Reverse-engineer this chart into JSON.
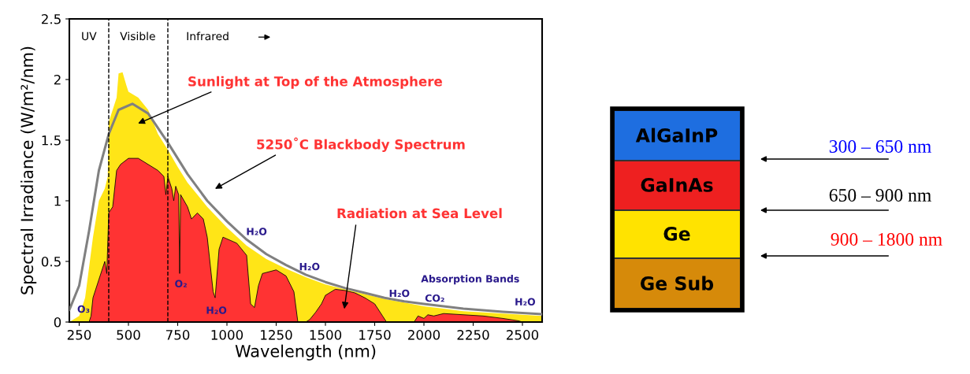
{
  "chart_data": {
    "type": "area",
    "xlabel": "Wavelength (nm)",
    "ylabel": "Spectral Irradiance (W/m²/nm)",
    "xlim": [
      200,
      2600
    ],
    "ylim": [
      0,
      2.5
    ],
    "xticks": [
      250,
      500,
      750,
      1000,
      1250,
      1500,
      1750,
      2000,
      2250,
      2500
    ],
    "yticks": [
      0,
      0.5,
      1,
      1.5,
      2,
      2.5
    ],
    "grid": false,
    "legend": false,
    "series": [
      {
        "color": "#ffe517",
        "x": [
          200,
          250,
          280,
          300,
          320,
          350,
          380,
          395,
          400,
          420,
          440,
          450,
          470,
          490,
          500,
          550,
          600,
          650,
          700,
          750,
          800,
          900,
          1000,
          1100,
          1200,
          1300,
          1400,
          1500,
          1600,
          1700,
          1800,
          1900,
          2000,
          2100,
          2200,
          2300,
          2400,
          2500,
          2600
        ],
        "values": [
          0,
          0.05,
          0.2,
          0.45,
          0.7,
          1.0,
          1.1,
          1.2,
          1.65,
          1.75,
          1.85,
          2.05,
          2.06,
          1.95,
          1.9,
          1.85,
          1.75,
          1.55,
          1.42,
          1.28,
          1.15,
          0.95,
          0.78,
          0.63,
          0.52,
          0.44,
          0.37,
          0.31,
          0.27,
          0.23,
          0.19,
          0.16,
          0.13,
          0.11,
          0.09,
          0.08,
          0.07,
          0.06,
          0.05
        ]
      },
      {
        "color": "#ff3333",
        "x": [
          300,
          310,
          320,
          350,
          380,
          390,
          400,
          420,
          440,
          460,
          500,
          550,
          600,
          650,
          680,
          690,
          700,
          720,
          730,
          740,
          755,
          760,
          765,
          800,
          820,
          850,
          880,
          900,
          930,
          940,
          960,
          980,
          1050,
          1100,
          1120,
          1140,
          1160,
          1180,
          1250,
          1300,
          1340,
          1360,
          1400,
          1420,
          1450,
          1480,
          1500,
          1550,
          1600,
          1650,
          1700,
          1750,
          1790,
          1810,
          1950,
          1970,
          2000,
          2020,
          2050,
          2100,
          2200,
          2300,
          2400,
          2480,
          2500,
          2600
        ],
        "values": [
          0,
          0.05,
          0.2,
          0.35,
          0.5,
          0.4,
          0.9,
          0.95,
          1.25,
          1.3,
          1.35,
          1.35,
          1.3,
          1.25,
          1.2,
          1.05,
          1.2,
          1.1,
          1.0,
          1.12,
          1.05,
          0.4,
          1.05,
          0.95,
          0.85,
          0.9,
          0.85,
          0.7,
          0.25,
          0.2,
          0.6,
          0.7,
          0.65,
          0.55,
          0.15,
          0.12,
          0.3,
          0.4,
          0.43,
          0.38,
          0.25,
          0,
          0,
          0.02,
          0.08,
          0.15,
          0.22,
          0.27,
          0.26,
          0.24,
          0.2,
          0.15,
          0.05,
          0,
          0,
          0.05,
          0.03,
          0.06,
          0.05,
          0.07,
          0.06,
          0.05,
          0.03,
          0.01,
          0,
          0
        ]
      },
      {
        "type": "line",
        "color": "#808080",
        "x": [
          200,
          250,
          300,
          350,
          400,
          450,
          520,
          600,
          700,
          800,
          900,
          1000,
          1100,
          1200,
          1300,
          1400,
          1500,
          1600,
          1700,
          1800,
          1900,
          2000,
          2200,
          2400,
          2600
        ],
        "values": [
          0.1,
          0.3,
          0.75,
          1.25,
          1.55,
          1.75,
          1.8,
          1.72,
          1.48,
          1.22,
          1.0,
          0.83,
          0.68,
          0.56,
          0.47,
          0.39,
          0.33,
          0.28,
          0.24,
          0.2,
          0.17,
          0.15,
          0.11,
          0.085,
          0.065
        ]
      }
    ],
    "ref_lines": [
      {
        "axis": "x",
        "value": 400,
        "color": "#000000",
        "line_style": "dashed"
      },
      {
        "axis": "x",
        "value": 700,
        "color": "#000000",
        "line_style": "dashed"
      }
    ],
    "annotations": [
      "Sunlight at Top of the Atmosphere",
      "5250˚C Blackbody Spectrum",
      "Radiation at Sea Level",
      "O₃",
      "O₂",
      "H₂O",
      "H₂O",
      "H₂O",
      "H₂O",
      "CO₂",
      "Absorption Bands",
      "H₂O",
      "UV",
      "Visible",
      "Infrared",
      "AlGaInP",
      "GaInAs",
      "Ge",
      "Ge Sub",
      "300 – 650 nm",
      "650 – 900 nm",
      "900 – 1800 nm"
    ]
  }
}
